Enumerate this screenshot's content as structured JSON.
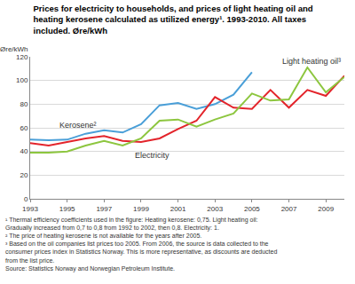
{
  "chart_data": {
    "type": "line",
    "title": "Prices for electricity to households, and prices of light heating oil and heating kerosene calculated as utilized energy¹. 1993-2010. All taxes included. Øre/kWh",
    "y_label": "Øre/kWh",
    "x": [
      1993,
      1994,
      1995,
      1996,
      1997,
      1998,
      1999,
      2000,
      2001,
      2002,
      2003,
      2004,
      2005,
      2006,
      2007,
      2008,
      2009,
      2010
    ],
    "series": [
      {
        "name": "Kerosene²",
        "color": "#4a9fd8",
        "values": [
          50,
          49.5,
          50,
          55,
          58,
          56,
          63,
          79,
          81,
          76,
          80,
          88,
          107,
          null,
          null,
          null,
          null,
          null
        ]
      },
      {
        "name": "Electricity",
        "color": "#e3242b",
        "values": [
          47,
          45,
          48,
          51,
          53,
          49,
          48,
          51,
          59,
          66,
          86,
          77,
          76,
          92,
          77,
          92,
          87,
          104
        ]
      },
      {
        "name": "Light heating oil³",
        "color": "#8dc63f",
        "values": [
          39,
          39,
          40,
          45,
          49,
          45,
          51,
          66,
          67,
          61,
          67,
          72,
          89,
          83,
          84,
          111,
          90,
          103
        ]
      }
    ],
    "annotations": [
      {
        "text": "Kerosene²",
        "x": 1995.6,
        "y": 62
      },
      {
        "text": "Electricity",
        "x": 1999.6,
        "y": 37
      },
      {
        "text": "Light heating oil³",
        "x": 2008.2,
        "y": 116
      }
    ],
    "xlim": [
      1993,
      2010
    ],
    "xticks": [
      1993,
      1995,
      1997,
      1999,
      2001,
      2003,
      2005,
      2007,
      2009
    ],
    "ylim": [
      0,
      120
    ],
    "yticks": [
      0,
      20,
      40,
      60,
      80,
      100,
      120
    ],
    "grid": true,
    "notes": [
      "¹ Thermal efficiency coefficients used in the figure: Heating kerosene: 0,75. Light heating oil: Gradually increased from 0,7 to 0,8 from 1992 to 2002, then 0,8. Electricity: 1.",
      "² The price of heating kerosene is not available for the years after 2005.",
      "³ Based on the oil companies list prices too 2005. From 2006, the source is data collected to the consumer prices index in Statistics Norway. This is more representative, as discounts are deducted from the list price.",
      "Source: Statistics Norway and Norwegian Petroleum Institute."
    ]
  }
}
